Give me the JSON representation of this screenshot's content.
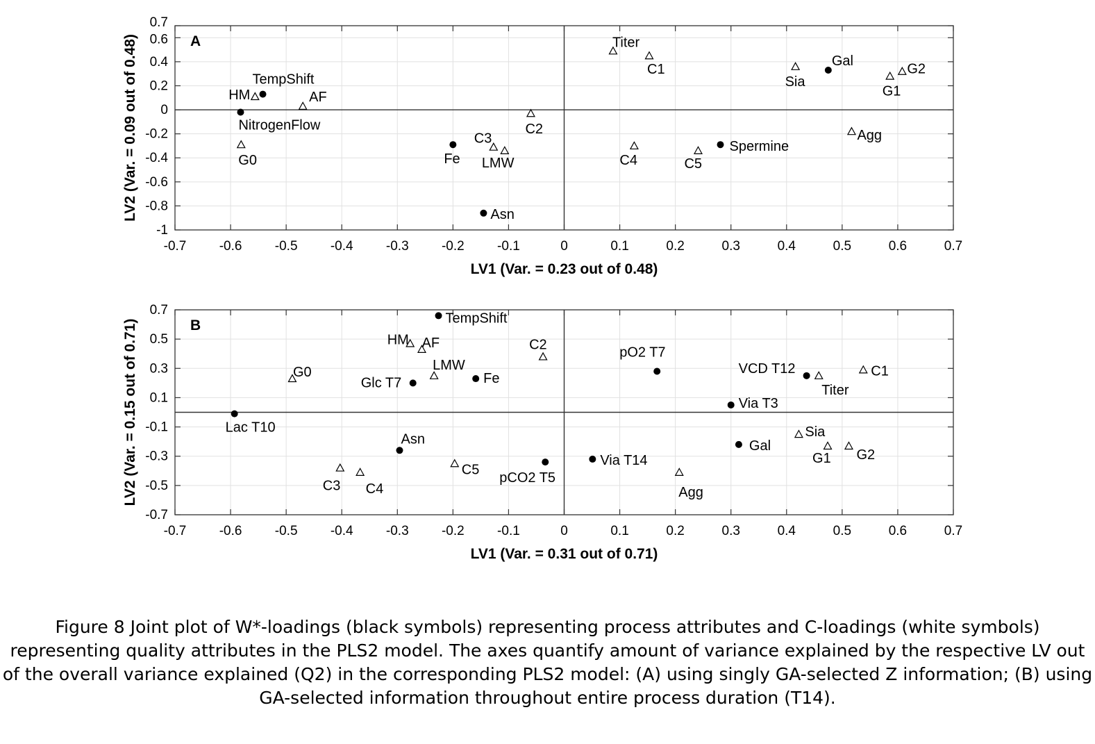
{
  "chart_data": [
    {
      "panel": "A",
      "type": "scatter",
      "xlabel": "LV1 (Var. = 0.23 out of 0.48)",
      "ylabel": "LV2 (Var. = 0.09 out of 0.48)",
      "xlim": [
        -0.7,
        0.7
      ],
      "ylim": [
        -1,
        0.7
      ],
      "xticks": [
        "-0.7",
        "-0.6",
        "-0.5",
        "-0.4",
        "-0.3",
        "-0.2",
        "-0.1",
        "0",
        "0.1",
        "0.2",
        "0.3",
        "0.4",
        "0.5",
        "0.6",
        "0.7"
      ],
      "yticks": [
        "-1",
        "-0.8",
        "-0.6",
        "-0.4",
        "-0.2",
        "0",
        "0.2",
        "0.4",
        "0.6",
        "0.7"
      ],
      "grid": true,
      "series": [
        {
          "name": "W*-loadings (process attributes)",
          "marker": "filled-circle",
          "points": [
            {
              "label": "TempShift",
              "x": -0.542,
              "y": 0.13
            },
            {
              "label": "NitrogenFlow",
              "x": -0.582,
              "y": -0.02
            },
            {
              "label": "Fe",
              "x": -0.2,
              "y": -0.29
            },
            {
              "label": "Asn",
              "x": -0.145,
              "y": -0.86
            },
            {
              "label": "Spermine",
              "x": 0.281,
              "y": -0.29
            },
            {
              "label": "Gal",
              "x": 0.475,
              "y": 0.33
            }
          ]
        },
        {
          "name": "C-loadings (quality attributes)",
          "marker": "open-triangle",
          "points": [
            {
              "label": "HM",
              "x": -0.556,
              "y": 0.11
            },
            {
              "label": "AF",
              "x": -0.47,
              "y": 0.03
            },
            {
              "label": "G0",
              "x": -0.581,
              "y": -0.29
            },
            {
              "label": "C3",
              "x": -0.127,
              "y": -0.31
            },
            {
              "label": "LMW",
              "x": -0.107,
              "y": -0.34
            },
            {
              "label": "C2",
              "x": -0.06,
              "y": -0.03
            },
            {
              "label": "Titer",
              "x": 0.088,
              "y": 0.49
            },
            {
              "label": "C1",
              "x": 0.153,
              "y": 0.45
            },
            {
              "label": "C4",
              "x": 0.126,
              "y": -0.3
            },
            {
              "label": "C5",
              "x": 0.241,
              "y": -0.34
            },
            {
              "label": "Sia",
              "x": 0.416,
              "y": 0.36
            },
            {
              "label": "G1",
              "x": 0.586,
              "y": 0.28
            },
            {
              "label": "G2",
              "x": 0.608,
              "y": 0.32
            },
            {
              "label": "Agg",
              "x": 0.517,
              "y": -0.18
            }
          ]
        }
      ]
    },
    {
      "panel": "B",
      "type": "scatter",
      "xlabel": "LV1 (Var. = 0.31 out of 0.71)",
      "ylabel": "LV2 (Var. = 0.15 out of 0.71)",
      "xlim": [
        -0.7,
        0.7
      ],
      "ylim": [
        -0.7,
        0.7
      ],
      "xticks": [
        "-0.7",
        "-0.6",
        "-0.5",
        "-0.4",
        "-0.3",
        "-0.2",
        "-0.1",
        "0",
        "0.1",
        "0.2",
        "0.3",
        "0.4",
        "0.5",
        "0.6",
        "0.7"
      ],
      "yticks": [
        "-0.7",
        "-0.5",
        "-0.3",
        "-0.1",
        "0.1",
        "0.3",
        "0.5",
        "0.7"
      ],
      "grid": true,
      "series": [
        {
          "name": "W*-loadings (process attributes)",
          "marker": "filled-circle",
          "points": [
            {
              "label": "TempShift",
              "x": -0.226,
              "y": 0.66
            },
            {
              "label": "Glc T7",
              "x": -0.272,
              "y": 0.2
            },
            {
              "label": "Fe",
              "x": -0.159,
              "y": 0.23
            },
            {
              "label": "Lac T10",
              "x": -0.593,
              "y": -0.01
            },
            {
              "label": "Asn",
              "x": -0.296,
              "y": -0.26
            },
            {
              "label": "pCO2 T5",
              "x": -0.034,
              "y": -0.34
            },
            {
              "label": "pO2 T7",
              "x": 0.167,
              "y": 0.28
            },
            {
              "label": "VCD T12",
              "x": 0.436,
              "y": 0.25
            },
            {
              "label": "Via T3",
              "x": 0.3,
              "y": 0.05
            },
            {
              "label": "Gal",
              "x": 0.314,
              "y": -0.22
            },
            {
              "label": "Via T14",
              "x": 0.051,
              "y": -0.32
            }
          ]
        },
        {
          "name": "C-loadings (quality attributes)",
          "marker": "open-triangle",
          "points": [
            {
              "label": "HM",
              "x": -0.277,
              "y": 0.47
            },
            {
              "label": "AF",
              "x": -0.256,
              "y": 0.43
            },
            {
              "label": "C2",
              "x": -0.038,
              "y": 0.38
            },
            {
              "label": "LMW",
              "x": -0.234,
              "y": 0.25
            },
            {
              "label": "G0",
              "x": -0.489,
              "y": 0.23
            },
            {
              "label": "C3",
              "x": -0.403,
              "y": -0.38
            },
            {
              "label": "C4",
              "x": -0.367,
              "y": -0.41
            },
            {
              "label": "C5",
              "x": -0.197,
              "y": -0.35
            },
            {
              "label": "Titer",
              "x": 0.458,
              "y": 0.25
            },
            {
              "label": "C1",
              "x": 0.538,
              "y": 0.29
            },
            {
              "label": "Sia",
              "x": 0.422,
              "y": -0.15
            },
            {
              "label": "G1",
              "x": 0.474,
              "y": -0.23
            },
            {
              "label": "G2",
              "x": 0.512,
              "y": -0.23
            },
            {
              "label": "Agg",
              "x": 0.207,
              "y": -0.41
            }
          ]
        }
      ]
    }
  ],
  "caption": "Figure 8 Joint plot of W*-loadings (black symbols) representing process attributes and C-loadings (white symbols) representing quality attributes in the PLS2 model. The axes quantify amount of variance explained by the respective LV out of the overall variance explained (Q2) in the corresponding PLS2 model: (A) using singly GA-selected Z information; (B) using GA-selected information throughout entire process duration (T14)."
}
